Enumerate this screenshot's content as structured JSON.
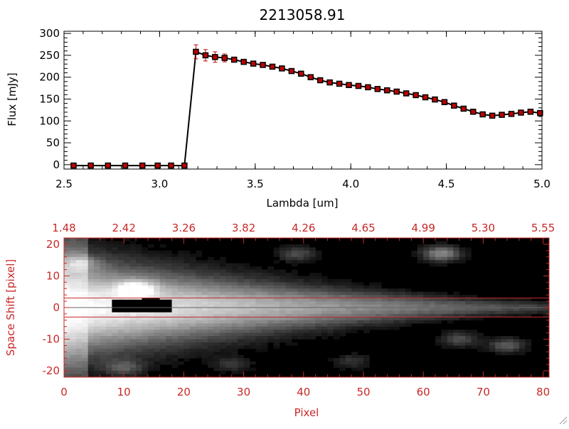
{
  "chart_data": [
    {
      "type": "line",
      "title": "2213058.91",
      "xlabel": "Lambda [um]",
      "ylabel": "Flux [mJy]",
      "xlim": [
        2.5,
        5.0
      ],
      "ylim": [
        -10,
        305
      ],
      "xticks": [
        2.5,
        3.0,
        3.5,
        4.0,
        4.5,
        5.0
      ],
      "xtick_labels": [
        "2.5",
        "3.0",
        "3.5",
        "4.0",
        "4.5",
        "5.0"
      ],
      "yticks": [
        0,
        50,
        100,
        150,
        200,
        250,
        300
      ],
      "ytick_labels": [
        "0",
        "50",
        "100",
        "150",
        "200",
        "250",
        "300"
      ],
      "series": [
        {
          "name": "flux",
          "color": "#000000",
          "marker_color": "#c00000",
          "errbar_color": "#c00000",
          "x": [
            2.55,
            2.64,
            2.73,
            2.82,
            2.91,
            2.99,
            3.06,
            3.13,
            3.19,
            3.24,
            3.29,
            3.34,
            3.39,
            3.44,
            3.49,
            3.54,
            3.59,
            3.64,
            3.69,
            3.74,
            3.79,
            3.84,
            3.89,
            3.94,
            3.99,
            4.04,
            4.09,
            4.14,
            4.19,
            4.24,
            4.29,
            4.34,
            4.39,
            4.44,
            4.49,
            4.54,
            4.59,
            4.64,
            4.69,
            4.74,
            4.79,
            4.84,
            4.89,
            4.94,
            4.99
          ],
          "y": [
            -2,
            -2,
            -2,
            -2,
            -2,
            -2,
            -2,
            -2,
            258,
            250,
            246,
            244,
            240,
            235,
            231,
            228,
            224,
            220,
            214,
            208,
            200,
            193,
            188,
            185,
            182,
            180,
            177,
            173,
            170,
            167,
            163,
            159,
            154,
            149,
            143,
            135,
            128,
            121,
            115,
            112,
            114,
            116,
            119,
            121,
            118
          ],
          "err": [
            0,
            0,
            0,
            0,
            0,
            0,
            0,
            0,
            16,
            13,
            12,
            9,
            5,
            4,
            4,
            4,
            4,
            4,
            4,
            4,
            4,
            4,
            4,
            4,
            4,
            4,
            4,
            4,
            4,
            4,
            4,
            4,
            4,
            4,
            4,
            4,
            4,
            4,
            4,
            4,
            4,
            4,
            4,
            4,
            4
          ]
        }
      ]
    },
    {
      "type": "heatmap",
      "colormap": "grayscale",
      "axis_color": "#c82828",
      "xlabel": "Pixel",
      "ylabel": "Space Shift [pixel]",
      "xlim": [
        0,
        81
      ],
      "ylim": [
        -22,
        22
      ],
      "xticks": [
        0,
        10,
        20,
        30,
        40,
        50,
        60,
        70,
        80
      ],
      "xtick_labels": [
        "0",
        "10",
        "20",
        "30",
        "40",
        "50",
        "60",
        "70",
        "80"
      ],
      "yticks": [
        -20,
        -10,
        0,
        10,
        20
      ],
      "ytick_labels": [
        "-20",
        "-10",
        "0",
        "10",
        "20"
      ],
      "top_axis_labels": [
        "1.48",
        "2.42",
        "3.26",
        "3.82",
        "4.26",
        "4.65",
        "4.99",
        "5.30",
        "5.55"
      ],
      "aperture_lines": [
        3,
        -3
      ],
      "trace_center": 0,
      "blobs": [
        {
          "x": 12,
          "y": 6,
          "intensity": 0.55
        },
        {
          "x": 63,
          "y": 17,
          "intensity": 0.55
        },
        {
          "x": 39,
          "y": 17,
          "intensity": 0.3
        },
        {
          "x": 74,
          "y": -12,
          "intensity": 0.35
        },
        {
          "x": 66,
          "y": -10,
          "intensity": 0.3
        },
        {
          "x": 3,
          "y": 14,
          "intensity": 0.3
        },
        {
          "x": 10,
          "y": -19,
          "intensity": 0.3
        },
        {
          "x": 28,
          "y": -18,
          "intensity": 0.2
        },
        {
          "x": 48,
          "y": -17,
          "intensity": 0.2
        }
      ],
      "saturated_region": {
        "x0": 8,
        "x1": 18,
        "y0": -1.5,
        "y1": 2.5
      }
    }
  ]
}
